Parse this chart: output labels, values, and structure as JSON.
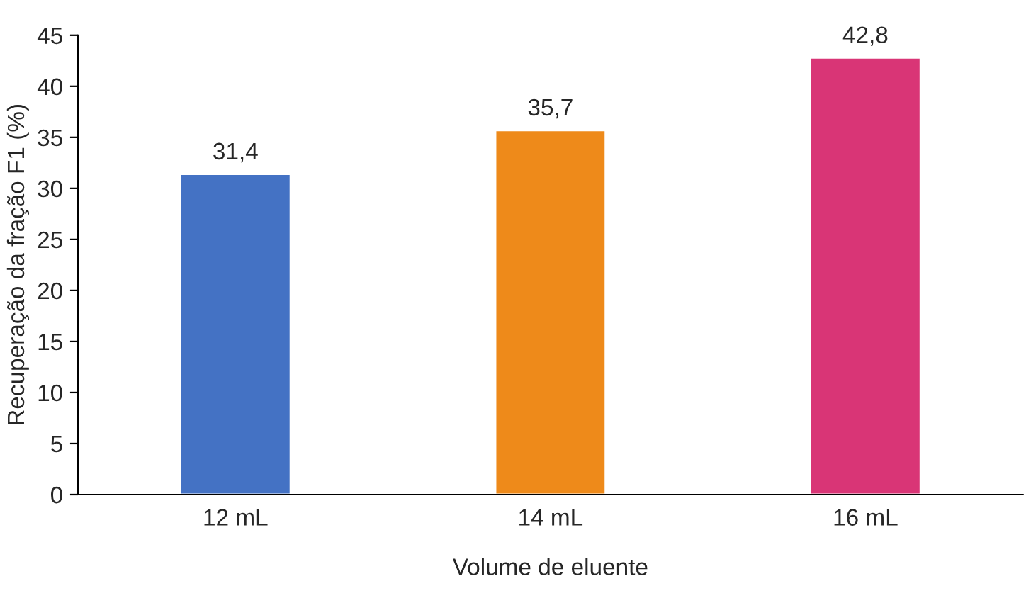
{
  "chart_data": {
    "type": "bar",
    "xlabel": "Volume de eluente",
    "ylabel": "Recuperação da fração F1 (%)",
    "categories": [
      "12 mL",
      "14 mL",
      "16 mL"
    ],
    "values": [
      31.4,
      35.7,
      42.8
    ],
    "value_labels": [
      "31,4",
      "35,7",
      "42,8"
    ],
    "colors": [
      "#4472c4",
      "#ee8a1a",
      "#d93576"
    ],
    "ylim": [
      0,
      45
    ],
    "yticks": [
      0,
      5,
      10,
      15,
      20,
      25,
      30,
      35,
      40,
      45
    ],
    "grid": false,
    "legend": false
  }
}
